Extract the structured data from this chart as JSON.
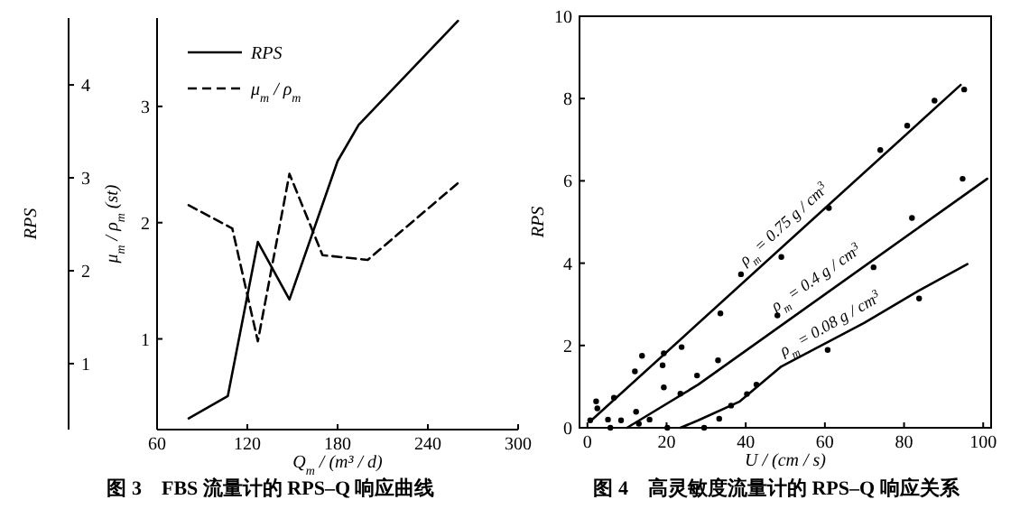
{
  "chart_data": [
    {
      "type": "line",
      "title": "图 3　FBS 流量计的 RPS–Q 响应曲线",
      "xlabel": "Q$_{m}$ / (m³ / d)",
      "ylabel": "RPS",
      "y2label": "μ$_{m}$ / ρ$_{m}$ (st)",
      "xlim": [
        60,
        300
      ],
      "xticks": [
        60,
        120,
        180,
        240,
        300
      ],
      "ylim": [
        0.29,
        4.72
      ],
      "yticks": [
        1,
        2,
        3,
        4
      ],
      "y2lim": [
        0.22,
        3.76
      ],
      "y2ticks": [
        1,
        2,
        3
      ],
      "legend": "top left",
      "grid": false,
      "series": [
        {
          "name": "RPS",
          "color": "#000000",
          "line_style": "solid",
          "x": [
            81,
            107,
            127,
            148,
            180,
            194,
            260
          ],
          "values": [
            0.41,
            0.65,
            2.31,
            1.69,
            3.18,
            3.57,
            4.69
          ]
        },
        {
          "name": "μ$_{m}$ / ρ$_{m}$",
          "color": "#000000",
          "line_style": "dashed",
          "axis": "y2",
          "x": [
            81,
            110,
            127,
            148,
            170,
            200,
            260
          ],
          "values": [
            2.15,
            1.95,
            0.98,
            2.42,
            1.72,
            1.68,
            2.34
          ]
        }
      ]
    },
    {
      "type": "scatter",
      "title": "图 4　高灵敏度流量计的 RPS–Q 响应关系",
      "xlabel": "U / (cm / s)",
      "ylabel": "RPS",
      "xlim": [
        -2,
        102
      ],
      "xticks": [
        0,
        20,
        40,
        60,
        80,
        100
      ],
      "ylim": [
        0,
        10
      ],
      "yticks": [
        0,
        2,
        4,
        6,
        8,
        10
      ],
      "grid": false,
      "legend": false,
      "marker": "circle",
      "series": [
        {
          "color": "#000000",
          "x": [
            2.2,
            2.5,
            6.7,
            12,
            13.8,
            19,
            19.3,
            23.8,
            33.6,
            38.8,
            49,
            61,
            74,
            80.8,
            87.7,
            95.2
          ],
          "values": [
            0.64,
            0.47,
            0.73,
            1.37,
            1.75,
            1.52,
            1.81,
            1.96,
            2.78,
            3.73,
            4.15,
            5.34,
            6.75,
            7.34,
            7.95,
            8.22
          ]
        },
        {
          "color": "#000000",
          "x": [
            0.7,
            5.2,
            5.8,
            8.5,
            12.3,
            13,
            15.7,
            19.3,
            23.5,
            27.7,
            33,
            48,
            72.3,
            82,
            94.8
          ],
          "values": [
            0.18,
            0.2,
            0,
            0.18,
            0.39,
            0.1,
            0.2,
            0.98,
            0.83,
            1.27,
            1.64,
            2.73,
            3.9,
            5.1,
            6.05
          ]
        },
        {
          "color": "#000000",
          "x": [
            20.2,
            29.5,
            33.3,
            36.3,
            40.3,
            42.7,
            60.7,
            83.8
          ],
          "values": [
            0,
            0,
            0.22,
            0.54,
            0.82,
            1.05,
            1.89,
            3.14
          ]
        },
        {
          "type": "line",
          "marker": "none",
          "name": "ρ$_{m}$ = 0.75 g / cm$^{3}$",
          "color": "#000000",
          "x": [
            1,
            94.3
          ],
          "values": [
            0.18,
            8.33
          ]
        },
        {
          "type": "line",
          "marker": "none",
          "name": "ρ$_{m}$ = 0.4 g / cm$^{3}$",
          "color": "#000000",
          "x": [
            10,
            28,
            101
          ],
          "values": [
            0,
            1.05,
            6.05
          ]
        },
        {
          "type": "line",
          "marker": "none",
          "name": "ρ$_{m}$ = 0.08 g / cm$^{3}$",
          "color": "#000000",
          "x": [
            23.5,
            28,
            38.5,
            49,
            70,
            83.5,
            96
          ],
          "values": [
            0,
            0.18,
            0.64,
            1.49,
            2.55,
            3.32,
            3.98
          ]
        }
      ]
    }
  ]
}
